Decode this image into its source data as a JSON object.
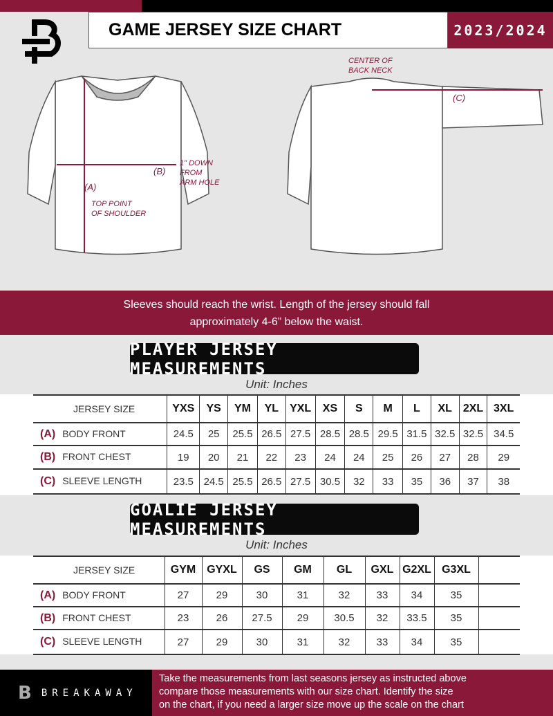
{
  "header": {
    "title": "GAME JERSEY SIZE CHART",
    "season": "2023/2024",
    "logo_letter": "B"
  },
  "diagram": {
    "front_labels": {
      "a": "(A)",
      "b": "(B)",
      "top_point": [
        "TOP POINT",
        "OF SHOULDER"
      ],
      "down": [
        "1\" DOWN",
        "FROM",
        "ARM HOLE"
      ]
    },
    "back_labels": {
      "center": [
        "CENTER OF",
        "BACK NECK"
      ],
      "c": "(C)"
    }
  },
  "instruction": [
    "Sleeves should reach the wrist. Length of the jersey should fall",
    "approximately 4-6” below the waist."
  ],
  "player": {
    "title": "PLAYER JERSEY MEASUREMENTS",
    "unit": "Unit: Inches",
    "size_label": "JERSEY SIZE",
    "sizes": [
      "YXS",
      "YS",
      "YM",
      "YL",
      "YXL",
      "XS",
      "S",
      "M",
      "L",
      "XL",
      "2XL",
      "3XL"
    ],
    "rows": [
      {
        "letter": "(A)",
        "label": "BODY FRONT",
        "values": [
          "24.5",
          "25",
          "25.5",
          "26.5",
          "27.5",
          "28.5",
          "28.5",
          "29.5",
          "31.5",
          "32.5",
          "32.5",
          "34.5"
        ]
      },
      {
        "letter": "(B)",
        "label": "FRONT CHEST",
        "values": [
          "19",
          "20",
          "21",
          "22",
          "23",
          "24",
          "24",
          "25",
          "26",
          "27",
          "28",
          "29"
        ]
      },
      {
        "letter": "(C)",
        "label": "SLEEVE LENGTH",
        "values": [
          "23.5",
          "24.5",
          "25.5",
          "26.5",
          "27.5",
          "30.5",
          "32",
          "33",
          "35",
          "36",
          "37",
          "38"
        ]
      }
    ]
  },
  "goalie": {
    "title": "GOALIE JERSEY MEASUREMENTS",
    "unit": "Unit: Inches",
    "size_label": "JERSEY SIZE",
    "sizes": [
      "GYM",
      "GYXL",
      "GS",
      "GM",
      "GL",
      "GXL",
      "G2XL",
      "G3XL",
      ""
    ],
    "rows": [
      {
        "letter": "(A)",
        "label": "BODY FRONT",
        "values": [
          "27",
          "29",
          "30",
          "31",
          "32",
          "33",
          "34",
          "35",
          ""
        ]
      },
      {
        "letter": "(B)",
        "label": "FRONT CHEST",
        "values": [
          "23",
          "26",
          "27.5",
          "29",
          "30.5",
          "32",
          "33.5",
          "35",
          ""
        ]
      },
      {
        "letter": "(C)",
        "label": "SLEEVE LENGTH",
        "values": [
          "27",
          "29",
          "30",
          "31",
          "32",
          "33",
          "34",
          "35",
          ""
        ]
      }
    ]
  },
  "footer": {
    "brand": "BREAKAWAY",
    "text": [
      "Take the measurements from last seasons jersey as instructed above",
      "compare those measurements  with our size chart. Identify the size",
      "on the chart, if you need a larger size move up the scale on the chart"
    ]
  },
  "colors": {
    "accent": "#8a1838",
    "dark": "#000000",
    "background": "#e6e6e7"
  }
}
